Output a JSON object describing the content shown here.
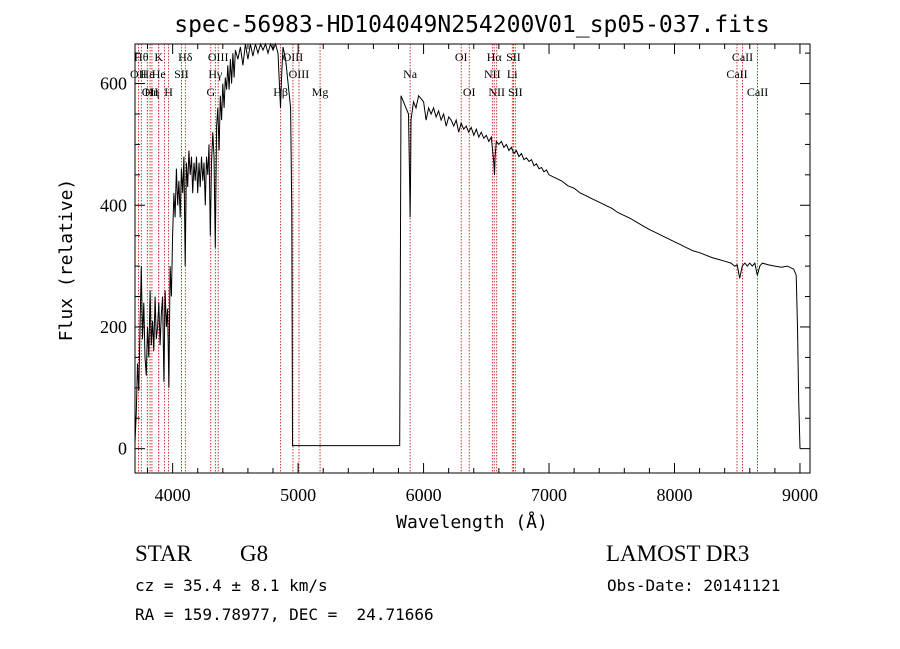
{
  "chart_data": {
    "type": "line",
    "title": "spec-56983-HD104049N254200V01_sp05-037.fits",
    "xlabel": "Wavelength (Å)",
    "ylabel": "Flux (relative)",
    "xlim": [
      3700,
      9080
    ],
    "ylim": [
      -40,
      665
    ],
    "xticks": [
      4000,
      5000,
      6000,
      7000,
      8000,
      9000
    ],
    "yticks": [
      0,
      200,
      400,
      600
    ],
    "grid": false,
    "series": [
      {
        "points": [
          [
            3700,
            10
          ],
          [
            3710,
            60
          ],
          [
            3720,
            140
          ],
          [
            3730,
            95
          ],
          [
            3740,
            200
          ],
          [
            3750,
            300
          ],
          [
            3760,
            180
          ],
          [
            3770,
            240
          ],
          [
            3780,
            150
          ],
          [
            3790,
            120
          ],
          [
            3800,
            200
          ],
          [
            3810,
            150
          ],
          [
            3820,
            260
          ],
          [
            3830,
            170
          ],
          [
            3840,
            210
          ],
          [
            3850,
            160
          ],
          [
            3860,
            250
          ],
          [
            3870,
            180
          ],
          [
            3880,
            200
          ],
          [
            3890,
            240
          ],
          [
            3900,
            170
          ],
          [
            3910,
            220
          ],
          [
            3920,
            250
          ],
          [
            3930,
            110
          ],
          [
            3940,
            260
          ],
          [
            3950,
            200
          ],
          [
            3960,
            230
          ],
          [
            3970,
            100
          ],
          [
            3980,
            300
          ],
          [
            3990,
            250
          ],
          [
            4000,
            350
          ],
          [
            4010,
            420
          ],
          [
            4020,
            380
          ],
          [
            4030,
            460
          ],
          [
            4040,
            400
          ],
          [
            4050,
            440
          ],
          [
            4060,
            380
          ],
          [
            4070,
            460
          ],
          [
            4080,
            420
          ],
          [
            4090,
            480
          ],
          [
            4100,
            300
          ],
          [
            4110,
            470
          ],
          [
            4120,
            430
          ],
          [
            4130,
            490
          ],
          [
            4140,
            450
          ],
          [
            4150,
            480
          ],
          [
            4160,
            420
          ],
          [
            4170,
            470
          ],
          [
            4180,
            440
          ],
          [
            4190,
            480
          ],
          [
            4200,
            420
          ],
          [
            4210,
            470
          ],
          [
            4220,
            430
          ],
          [
            4230,
            480
          ],
          [
            4240,
            440
          ],
          [
            4250,
            470
          ],
          [
            4260,
            400
          ],
          [
            4270,
            480
          ],
          [
            4280,
            450
          ],
          [
            4290,
            500
          ],
          [
            4300,
            350
          ],
          [
            4310,
            470
          ],
          [
            4320,
            520
          ],
          [
            4330,
            480
          ],
          [
            4340,
            330
          ],
          [
            4350,
            530
          ],
          [
            4360,
            560
          ],
          [
            4370,
            490
          ],
          [
            4380,
            580
          ],
          [
            4390,
            540
          ],
          [
            4400,
            600
          ],
          [
            4410,
            560
          ],
          [
            4420,
            610
          ],
          [
            4430,
            590
          ],
          [
            4440,
            630
          ],
          [
            4450,
            590
          ],
          [
            4460,
            640
          ],
          [
            4470,
            600
          ],
          [
            4480,
            650
          ],
          [
            4490,
            610
          ],
          [
            4500,
            655
          ],
          [
            4520,
            640
          ],
          [
            4540,
            660
          ],
          [
            4560,
            630
          ],
          [
            4580,
            665
          ],
          [
            4600,
            640
          ],
          [
            4620,
            665
          ],
          [
            4640,
            645
          ],
          [
            4660,
            665
          ],
          [
            4680,
            650
          ],
          [
            4700,
            665
          ],
          [
            4720,
            655
          ],
          [
            4740,
            665
          ],
          [
            4760,
            650
          ],
          [
            4780,
            665
          ],
          [
            4800,
            655
          ],
          [
            4820,
            665
          ],
          [
            4840,
            650
          ],
          [
            4860,
            560
          ],
          [
            4870,
            620
          ],
          [
            4880,
            660
          ],
          [
            4900,
            640
          ],
          [
            4920,
            600
          ],
          [
            4940,
            560
          ],
          [
            4950,
            390
          ],
          [
            4955,
            5
          ],
          [
            5000,
            5
          ],
          [
            5500,
            5
          ],
          [
            5810,
            5
          ],
          [
            5815,
            310
          ],
          [
            5820,
            580
          ],
          [
            5840,
            570
          ],
          [
            5860,
            560
          ],
          [
            5880,
            550
          ],
          [
            5890,
            420
          ],
          [
            5893,
            380
          ],
          [
            5896,
            430
          ],
          [
            5900,
            540
          ],
          [
            5920,
            570
          ],
          [
            5940,
            560
          ],
          [
            5960,
            580
          ],
          [
            5980,
            575
          ],
          [
            6000,
            570
          ],
          [
            6020,
            540
          ],
          [
            6040,
            560
          ],
          [
            6060,
            550
          ],
          [
            6080,
            560
          ],
          [
            6100,
            545
          ],
          [
            6120,
            555
          ],
          [
            6140,
            540
          ],
          [
            6160,
            550
          ],
          [
            6180,
            530
          ],
          [
            6200,
            545
          ],
          [
            6220,
            540
          ],
          [
            6240,
            530
          ],
          [
            6260,
            540
          ],
          [
            6280,
            520
          ],
          [
            6300,
            535
          ],
          [
            6320,
            525
          ],
          [
            6340,
            530
          ],
          [
            6360,
            520
          ],
          [
            6380,
            528
          ],
          [
            6400,
            515
          ],
          [
            6420,
            525
          ],
          [
            6440,
            512
          ],
          [
            6460,
            520
          ],
          [
            6480,
            510
          ],
          [
            6500,
            515
          ],
          [
            6520,
            505
          ],
          [
            6540,
            512
          ],
          [
            6560,
            470
          ],
          [
            6565,
            450
          ],
          [
            6570,
            480
          ],
          [
            6580,
            505
          ],
          [
            6600,
            500
          ],
          [
            6620,
            505
          ],
          [
            6640,
            495
          ],
          [
            6660,
            500
          ],
          [
            6680,
            490
          ],
          [
            6700,
            495
          ],
          [
            6720,
            485
          ],
          [
            6740,
            490
          ],
          [
            6760,
            480
          ],
          [
            6780,
            485
          ],
          [
            6800,
            475
          ],
          [
            6820,
            478
          ],
          [
            6840,
            472
          ],
          [
            6860,
            475
          ],
          [
            6880,
            465
          ],
          [
            6900,
            468
          ],
          [
            6920,
            460
          ],
          [
            6940,
            462
          ],
          [
            6960,
            455
          ],
          [
            6980,
            458
          ],
          [
            7000,
            450
          ],
          [
            7050,
            445
          ],
          [
            7100,
            440
          ],
          [
            7150,
            432
          ],
          [
            7200,
            428
          ],
          [
            7250,
            420
          ],
          [
            7300,
            415
          ],
          [
            7350,
            410
          ],
          [
            7400,
            405
          ],
          [
            7450,
            400
          ],
          [
            7500,
            395
          ],
          [
            7550,
            388
          ],
          [
            7600,
            383
          ],
          [
            7650,
            378
          ],
          [
            7700,
            372
          ],
          [
            7750,
            366
          ],
          [
            7800,
            360
          ],
          [
            7850,
            355
          ],
          [
            7900,
            350
          ],
          [
            7950,
            345
          ],
          [
            8000,
            340
          ],
          [
            8050,
            335
          ],
          [
            8100,
            330
          ],
          [
            8150,
            325
          ],
          [
            8200,
            322
          ],
          [
            8250,
            318
          ],
          [
            8300,
            314
          ],
          [
            8350,
            311
          ],
          [
            8400,
            308
          ],
          [
            8450,
            305
          ],
          [
            8480,
            300
          ],
          [
            8500,
            302
          ],
          [
            8520,
            280
          ],
          [
            8540,
            300
          ],
          [
            8560,
            305
          ],
          [
            8580,
            300
          ],
          [
            8600,
            305
          ],
          [
            8620,
            300
          ],
          [
            8640,
            305
          ],
          [
            8660,
            285
          ],
          [
            8680,
            300
          ],
          [
            8700,
            305
          ],
          [
            8750,
            302
          ],
          [
            8800,
            300
          ],
          [
            8850,
            298
          ],
          [
            8900,
            300
          ],
          [
            8950,
            295
          ],
          [
            8970,
            285
          ],
          [
            8980,
            200
          ],
          [
            8990,
            80
          ],
          [
            9000,
            0
          ]
        ]
      }
    ],
    "line_markers": [
      {
        "wavelength": 3750,
        "labels": [
          "Hθ"
        ],
        "row": 0
      },
      {
        "wavelength": 3727,
        "labels": [
          "OII"
        ],
        "row": 1
      },
      {
        "wavelength": 3798,
        "labels": [
          "Hε"
        ],
        "row": 1
      },
      {
        "wavelength": 3820,
        "labels": [
          "OII"
        ],
        "row": 2
      },
      {
        "wavelength": 3835,
        "labels": [
          "Hη"
        ],
        "row": 2
      },
      {
        "wavelength": 3889,
        "labels": [
          "K"
        ],
        "row": 0
      },
      {
        "wavelength": 3889,
        "labels": [
          "He"
        ],
        "row": 1
      },
      {
        "wavelength": 3934,
        "labels": [],
        "row": -1
      },
      {
        "wavelength": 3968,
        "labels": [
          "H"
        ],
        "row": 2
      },
      {
        "wavelength": 4101,
        "labels": [
          "Hδ"
        ],
        "row": 0
      },
      {
        "wavelength": 4070,
        "labels": [
          "SII"
        ],
        "row": 1
      },
      {
        "wavelength": 4304,
        "labels": [
          "G"
        ],
        "row": 2
      },
      {
        "wavelength": 4340,
        "labels": [
          "Hγ"
        ],
        "row": 1
      },
      {
        "wavelength": 4363,
        "labels": [
          "OIII"
        ],
        "row": 0
      },
      {
        "wavelength": 4861,
        "labels": [
          "Hβ"
        ],
        "row": 2
      },
      {
        "wavelength": 4959,
        "labels": [
          "OIII"
        ],
        "row": 0
      },
      {
        "wavelength": 5007,
        "labels": [
          "OIII"
        ],
        "row": 1
      },
      {
        "wavelength": 5175,
        "labels": [
          "Mg"
        ],
        "row": 2
      },
      {
        "wavelength": 5893,
        "labels": [
          "Na"
        ],
        "row": 1
      },
      {
        "wavelength": 6300,
        "labels": [
          "OI"
        ],
        "row": 0
      },
      {
        "wavelength": 6364,
        "labels": [
          "OI"
        ],
        "row": 2
      },
      {
        "wavelength": 6548,
        "labels": [
          "NII"
        ],
        "row": 1
      },
      {
        "wavelength": 6563,
        "labels": [
          "Hα"
        ],
        "row": 0
      },
      {
        "wavelength": 6583,
        "labels": [
          "NII"
        ],
        "row": 2
      },
      {
        "wavelength": 6707,
        "labels": [
          "Li"
        ],
        "row": 1
      },
      {
        "wavelength": 6716,
        "labels": [
          "SII"
        ],
        "row": 0
      },
      {
        "wavelength": 6731,
        "labels": [
          "SII"
        ],
        "row": 2
      },
      {
        "wavelength": 8498,
        "labels": [
          "CaII"
        ],
        "row": 1
      },
      {
        "wavelength": 8542,
        "labels": [
          "CaII"
        ],
        "row": 0
      },
      {
        "wavelength": 8662,
        "labels": [
          "CaII"
        ],
        "row": 2
      }
    ],
    "marker_color": "#cc0000",
    "line_color": "#000000"
  },
  "info": {
    "class": "STAR",
    "subclass": "G8",
    "survey": "LAMOST DR3",
    "cz": "cz = 35.4 ± 8.1 km/s",
    "obs_date": "Obs-Date: 20141121",
    "coords": "RA = 159.78977, DEC =  24.71666"
  }
}
